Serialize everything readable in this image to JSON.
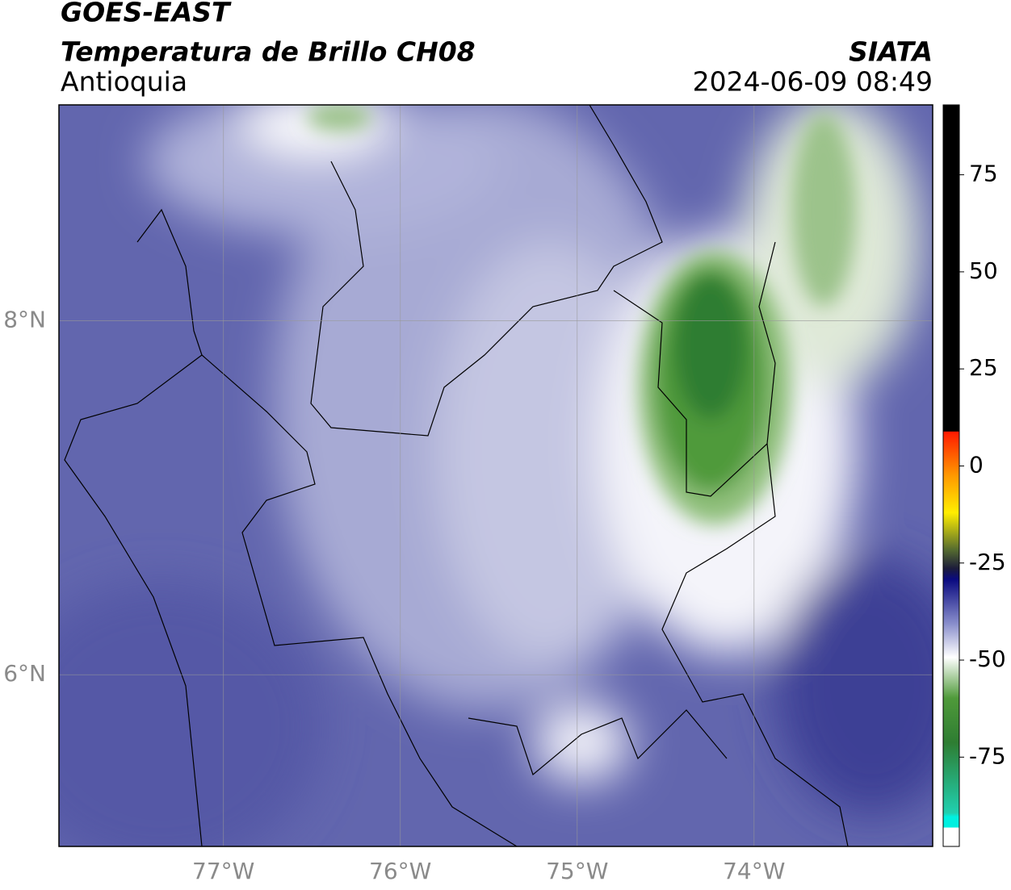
{
  "header": {
    "satellite": "GOES-EAST",
    "product": "Temperatura de Brillo CH08",
    "region": "Antioquia",
    "source": "SIATA",
    "datetime": "2024-06-09 08:49"
  },
  "map": {
    "xlim": [
      -77.93,
      -72.99
    ],
    "ylim": [
      5.03,
      9.22
    ],
    "xticks": [
      {
        "value": -77,
        "label": "77°W"
      },
      {
        "value": -76,
        "label": "76°W"
      },
      {
        "value": -75,
        "label": "75°W"
      },
      {
        "value": -74,
        "label": "74°W"
      }
    ],
    "yticks": [
      {
        "value": 8,
        "label": "8°N"
      },
      {
        "value": 6,
        "label": "6°N"
      }
    ],
    "grid": true
  },
  "colorbar": {
    "range": [
      -98,
      93
    ],
    "ticks": [
      75,
      50,
      25,
      0,
      -25,
      -50,
      -75
    ]
  }
}
